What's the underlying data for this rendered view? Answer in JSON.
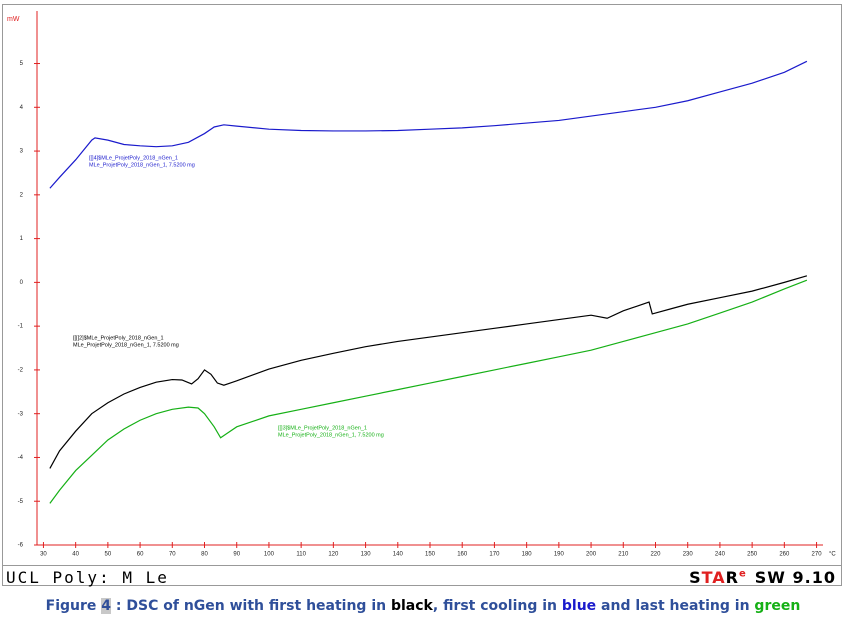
{
  "chart_data": {
    "type": "line",
    "y_label": "mW",
    "x_label": "°C",
    "xlim": [
      28,
      272
    ],
    "ylim": [
      -6,
      6.2
    ],
    "xticks": [
      30,
      40,
      50,
      60,
      70,
      80,
      90,
      100,
      110,
      120,
      130,
      140,
      150,
      160,
      170,
      180,
      190,
      200,
      210,
      220,
      230,
      240,
      250,
      260,
      270
    ],
    "yticks": [
      -6,
      -5,
      -4,
      -3,
      -2,
      -1,
      0,
      1,
      2,
      3,
      4,
      5
    ],
    "axis_color": "#e02020",
    "series": [
      {
        "label_lines": [
          "[[]4]$MLe_ProjetPoly_2018_nGen_1",
          "MLe_ProjetPoly_2018_nGen_1, 7.5200 mg"
        ],
        "color": "#1a1acc",
        "x": [
          32,
          35,
          40,
          45,
          46,
          50,
          55,
          60,
          65,
          70,
          75,
          80,
          83,
          86,
          90,
          100,
          110,
          120,
          130,
          140,
          150,
          160,
          170,
          180,
          190,
          200,
          210,
          220,
          230,
          240,
          250,
          260,
          267
        ],
        "values": [
          2.15,
          2.4,
          2.8,
          3.25,
          3.3,
          3.25,
          3.15,
          3.12,
          3.1,
          3.12,
          3.2,
          3.4,
          3.55,
          3.6,
          3.57,
          3.5,
          3.47,
          3.46,
          3.46,
          3.47,
          3.5,
          3.53,
          3.58,
          3.64,
          3.7,
          3.8,
          3.9,
          4.0,
          4.15,
          4.35,
          4.55,
          4.8,
          5.05
        ]
      },
      {
        "label_lines": [
          "[[[[2]$MLe_ProjetPoly_2018_nGen_1",
          "MLe_ProjetPoly_2018_nGen_1, 7.5200 mg"
        ],
        "color": "#000000",
        "x": [
          32,
          35,
          40,
          45,
          50,
          55,
          60,
          65,
          70,
          73,
          76,
          78,
          80,
          82,
          84,
          86,
          90,
          100,
          110,
          120,
          130,
          140,
          150,
          160,
          170,
          180,
          190,
          200,
          205,
          210,
          218,
          219,
          225,
          230,
          240,
          250,
          260,
          267
        ],
        "values": [
          -4.25,
          -3.85,
          -3.4,
          -3.0,
          -2.75,
          -2.55,
          -2.4,
          -2.28,
          -2.22,
          -2.23,
          -2.32,
          -2.2,
          -2.0,
          -2.1,
          -2.3,
          -2.35,
          -2.25,
          -1.98,
          -1.78,
          -1.62,
          -1.47,
          -1.35,
          -1.25,
          -1.15,
          -1.05,
          -0.95,
          -0.85,
          -0.75,
          -0.82,
          -0.65,
          -0.45,
          -0.72,
          -0.6,
          -0.5,
          -0.35,
          -0.2,
          0.0,
          0.15
        ]
      },
      {
        "label_lines": [
          "[[]3]$MLe_ProjetPoly_2018_nGen_1",
          "MLe_ProjetPoly_2018_nGen_1, 7.5200 mg"
        ],
        "color": "#16b016",
        "x": [
          32,
          35,
          40,
          45,
          50,
          55,
          60,
          65,
          70,
          75,
          78,
          80,
          83,
          85,
          87,
          90,
          100,
          110,
          120,
          130,
          140,
          150,
          160,
          170,
          180,
          190,
          200,
          210,
          220,
          230,
          240,
          250,
          260,
          267
        ],
        "values": [
          -5.05,
          -4.75,
          -4.3,
          -3.95,
          -3.6,
          -3.35,
          -3.15,
          -3.0,
          -2.9,
          -2.85,
          -2.87,
          -3.0,
          -3.3,
          -3.55,
          -3.45,
          -3.3,
          -3.05,
          -2.9,
          -2.75,
          -2.6,
          -2.45,
          -2.3,
          -2.15,
          -2.0,
          -1.85,
          -1.7,
          -1.55,
          -1.35,
          -1.15,
          -0.95,
          -0.7,
          -0.45,
          -0.15,
          0.05
        ]
      }
    ]
  },
  "footer": {
    "left": "UCL Poly: M Le",
    "brand": [
      {
        "text": "S",
        "color": "#000000"
      },
      {
        "text": "TA",
        "color": "#e02020"
      },
      {
        "text": "R",
        "color": "#000000"
      }
    ],
    "sup": "e",
    "version": "SW 9.10"
  },
  "caption": [
    {
      "text": "Figure ",
      "color": "#2f4f9a"
    },
    {
      "text": "4",
      "color": "#2f4f9a",
      "highlight": "#c8c8c8"
    },
    {
      "text": " : DSC of nGen with first heating in ",
      "color": "#2f4f9a"
    },
    {
      "text": "black",
      "color": "#000000"
    },
    {
      "text": ", first cooling in ",
      "color": "#2f4f9a"
    },
    {
      "text": "blue",
      "color": "#1a1acc"
    },
    {
      "text": " and last heating in ",
      "color": "#2f4f9a"
    },
    {
      "text": "green",
      "color": "#16b016"
    }
  ]
}
